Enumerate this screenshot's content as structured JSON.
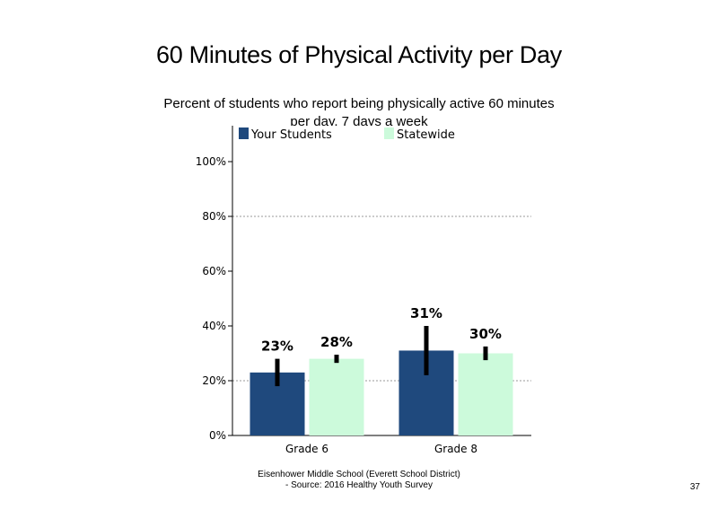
{
  "title": "60 Minutes of Physical Activity per Day",
  "subtitle": "Percent of students  who report being physically active 60 minutes  per day, 7 days a week",
  "footer": {
    "line1": "Eisenhower Middle School (Everett School District)",
    "line2": "- Source: 2016 Healthy  Youth Survey"
  },
  "page_number": "37",
  "chart_data": {
    "type": "bar",
    "categories": [
      "Grade 6",
      "Grade 8"
    ],
    "series": [
      {
        "name": "Your Students",
        "color": "#1f497d",
        "values": [
          23,
          31
        ],
        "labels": [
          "23%",
          "31%"
        ],
        "error": [
          [
            18,
            28
          ],
          [
            22,
            40
          ]
        ]
      },
      {
        "name": "Statewide",
        "color": "#ccfadb",
        "values": [
          28,
          30
        ],
        "labels": [
          "28%",
          "30%"
        ],
        "error": [
          [
            26.5,
            29.5
          ],
          [
            27.5,
            32.5
          ]
        ]
      }
    ],
    "ylim": [
      0,
      100
    ],
    "yticks": [
      0,
      20,
      40,
      60,
      80,
      100
    ],
    "ytick_labels": [
      "0%",
      "20%",
      "40%",
      "60%",
      "80%",
      "100%"
    ],
    "gridlines_at": [
      20,
      80
    ],
    "grid_style": "dotted",
    "legend_position": "top"
  }
}
